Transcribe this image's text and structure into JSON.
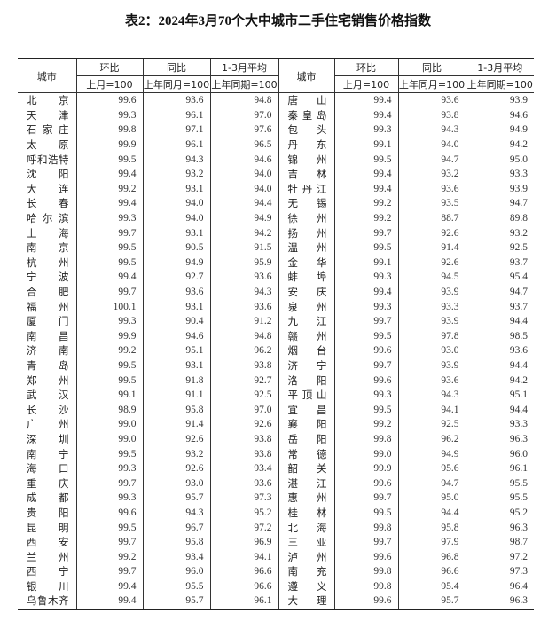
{
  "title": "表2：2024年3月70个大中城市二手住宅销售价格指数",
  "header": {
    "city": "城市",
    "mom": "环比",
    "yoy": "同比",
    "avg": "1-3月平均",
    "mom_base": "上月=100",
    "yoy_base": "上年同月=100",
    "avg_base": "上年同期=100"
  },
  "rows": [
    {
      "l": [
        "北京",
        "99.6",
        "93.6",
        "94.8"
      ],
      "r": [
        "唐山",
        "99.4",
        "93.6",
        "93.9"
      ]
    },
    {
      "l": [
        "天津",
        "99.3",
        "96.1",
        "97.0"
      ],
      "r": [
        "秦皇岛",
        "99.4",
        "93.8",
        "94.6"
      ]
    },
    {
      "l": [
        "石家庄",
        "99.8",
        "97.1",
        "97.6"
      ],
      "r": [
        "包头",
        "99.3",
        "94.3",
        "94.9"
      ]
    },
    {
      "l": [
        "太原",
        "99.9",
        "96.1",
        "96.5"
      ],
      "r": [
        "丹东",
        "99.1",
        "94.0",
        "94.2"
      ]
    },
    {
      "l": [
        "呼和浩特",
        "99.5",
        "94.3",
        "94.6"
      ],
      "r": [
        "锦州",
        "99.5",
        "94.7",
        "95.0"
      ]
    },
    {
      "l": [
        "沈阳",
        "99.4",
        "93.2",
        "94.0"
      ],
      "r": [
        "吉林",
        "99.4",
        "93.2",
        "93.3"
      ]
    },
    {
      "l": [
        "大连",
        "99.2",
        "93.1",
        "94.0"
      ],
      "r": [
        "牡丹江",
        "99.4",
        "93.6",
        "93.9"
      ]
    },
    {
      "l": [
        "长春",
        "99.4",
        "94.0",
        "94.4"
      ],
      "r": [
        "无锡",
        "99.2",
        "93.5",
        "94.7"
      ]
    },
    {
      "l": [
        "哈尔滨",
        "99.3",
        "94.0",
        "94.9"
      ],
      "r": [
        "徐州",
        "99.2",
        "88.7",
        "89.8"
      ]
    },
    {
      "l": [
        "上海",
        "99.7",
        "93.1",
        "94.2"
      ],
      "r": [
        "扬州",
        "99.7",
        "92.6",
        "93.2"
      ]
    },
    {
      "l": [
        "南京",
        "99.5",
        "90.5",
        "91.5"
      ],
      "r": [
        "温州",
        "99.5",
        "91.4",
        "92.5"
      ]
    },
    {
      "l": [
        "杭州",
        "99.5",
        "94.9",
        "95.9"
      ],
      "r": [
        "金华",
        "99.1",
        "92.6",
        "93.7"
      ]
    },
    {
      "l": [
        "宁波",
        "99.4",
        "92.7",
        "93.6"
      ],
      "r": [
        "蚌埠",
        "99.3",
        "94.5",
        "95.4"
      ]
    },
    {
      "l": [
        "合肥",
        "99.7",
        "93.6",
        "94.3"
      ],
      "r": [
        "安庆",
        "99.4",
        "93.9",
        "94.7"
      ]
    },
    {
      "l": [
        "福州",
        "100.1",
        "93.1",
        "93.6"
      ],
      "r": [
        "泉州",
        "99.3",
        "93.3",
        "93.7"
      ]
    },
    {
      "l": [
        "厦门",
        "99.3",
        "90.4",
        "91.2"
      ],
      "r": [
        "九江",
        "99.7",
        "93.9",
        "94.4"
      ]
    },
    {
      "l": [
        "南昌",
        "99.9",
        "94.6",
        "94.8"
      ],
      "r": [
        "赣州",
        "99.5",
        "97.8",
        "98.5"
      ]
    },
    {
      "l": [
        "济南",
        "99.2",
        "95.1",
        "96.2"
      ],
      "r": [
        "烟台",
        "99.6",
        "93.0",
        "93.6"
      ]
    },
    {
      "l": [
        "青岛",
        "99.5",
        "93.1",
        "93.8"
      ],
      "r": [
        "济宁",
        "99.7",
        "93.9",
        "94.4"
      ]
    },
    {
      "l": [
        "郑州",
        "99.5",
        "91.8",
        "92.7"
      ],
      "r": [
        "洛阳",
        "99.6",
        "93.6",
        "94.2"
      ]
    },
    {
      "l": [
        "武汉",
        "99.1",
        "91.1",
        "92.5"
      ],
      "r": [
        "平顶山",
        "99.3",
        "94.3",
        "95.1"
      ]
    },
    {
      "l": [
        "长沙",
        "98.9",
        "95.8",
        "97.0"
      ],
      "r": [
        "宜昌",
        "99.5",
        "94.1",
        "94.4"
      ]
    },
    {
      "l": [
        "广州",
        "99.0",
        "91.4",
        "92.6"
      ],
      "r": [
        "襄阳",
        "99.2",
        "92.5",
        "93.3"
      ]
    },
    {
      "l": [
        "深圳",
        "99.0",
        "92.6",
        "93.8"
      ],
      "r": [
        "岳阳",
        "99.8",
        "96.2",
        "96.3"
      ]
    },
    {
      "l": [
        "南宁",
        "99.5",
        "93.2",
        "93.8"
      ],
      "r": [
        "常德",
        "99.0",
        "94.9",
        "96.0"
      ]
    },
    {
      "l": [
        "海口",
        "99.3",
        "92.6",
        "93.4"
      ],
      "r": [
        "韶关",
        "99.9",
        "95.6",
        "96.1"
      ]
    },
    {
      "l": [
        "重庆",
        "99.7",
        "93.0",
        "93.6"
      ],
      "r": [
        "湛江",
        "99.6",
        "94.7",
        "95.5"
      ]
    },
    {
      "l": [
        "成都",
        "99.3",
        "95.7",
        "97.3"
      ],
      "r": [
        "惠州",
        "99.7",
        "95.0",
        "95.5"
      ]
    },
    {
      "l": [
        "贵阳",
        "99.6",
        "94.3",
        "95.2"
      ],
      "r": [
        "桂林",
        "99.5",
        "94.4",
        "95.2"
      ]
    },
    {
      "l": [
        "昆明",
        "99.5",
        "96.7",
        "97.2"
      ],
      "r": [
        "北海",
        "99.8",
        "95.8",
        "96.3"
      ]
    },
    {
      "l": [
        "西安",
        "99.7",
        "95.8",
        "96.9"
      ],
      "r": [
        "三亚",
        "99.7",
        "97.9",
        "98.7"
      ]
    },
    {
      "l": [
        "兰州",
        "99.2",
        "93.4",
        "94.1"
      ],
      "r": [
        "泸州",
        "99.6",
        "96.8",
        "97.2"
      ]
    },
    {
      "l": [
        "西宁",
        "99.7",
        "96.0",
        "96.6"
      ],
      "r": [
        "南充",
        "99.8",
        "96.6",
        "97.3"
      ]
    },
    {
      "l": [
        "银川",
        "99.4",
        "95.5",
        "96.6"
      ],
      "r": [
        "遵义",
        "99.8",
        "95.4",
        "96.4"
      ]
    },
    {
      "l": [
        "乌鲁木齐",
        "99.4",
        "95.7",
        "96.1"
      ],
      "r": [
        "大理",
        "99.6",
        "95.7",
        "96.3"
      ]
    }
  ]
}
